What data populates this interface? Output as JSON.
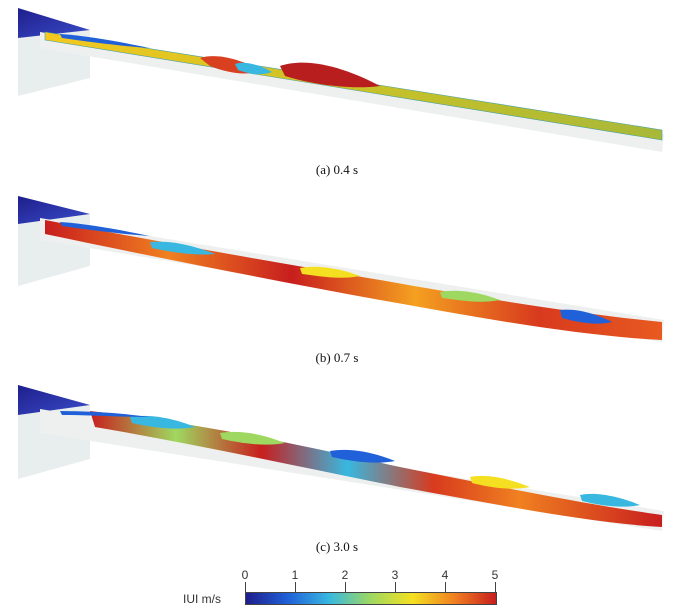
{
  "panels": [
    {
      "caption": "(a) 0.4 s"
    },
    {
      "caption": "(b) 0.7 s"
    },
    {
      "caption": "(c) 3.0 s"
    }
  ],
  "colorbar": {
    "title": "IUI m/s",
    "ticks": [
      "0",
      "1",
      "2",
      "3",
      "4",
      "5"
    ],
    "min": 0,
    "max": 5,
    "colormap": [
      "#1e1e8c",
      "#2060d8",
      "#38b8e0",
      "#9fd860",
      "#f4e020",
      "#f08020",
      "#c81e1e"
    ]
  }
}
